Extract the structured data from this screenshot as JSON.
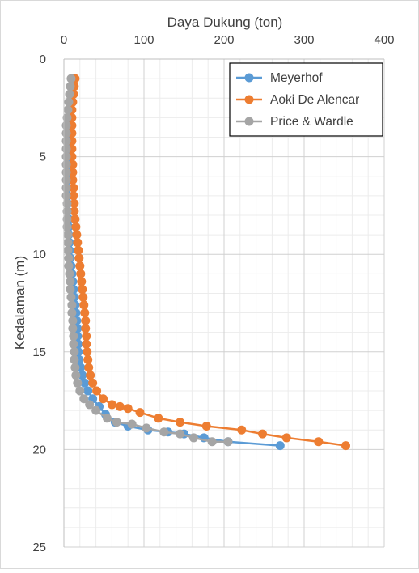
{
  "chart_data": {
    "type": "scatter",
    "title": "",
    "xlabel": "Daya Dukung (ton)",
    "ylabel": "Kedalaman (m)",
    "x_axis_position": "top",
    "y_axis_inverted": true,
    "xlim": [
      0,
      400
    ],
    "ylim": [
      0,
      25
    ],
    "x_ticks": [
      0,
      100,
      200,
      300,
      400
    ],
    "y_ticks": [
      0,
      5,
      10,
      15,
      20,
      25
    ],
    "x_minor_step": 20,
    "y_minor_step": 1,
    "grid": true,
    "legend": {
      "position": "top-right",
      "entries": [
        "Meyerhof",
        "Aoki De Alencar",
        "Price & Wardle"
      ]
    },
    "series": [
      {
        "name": "Meyerhof",
        "color": "#5B9BD5",
        "points": [
          [
            10,
            1.0
          ],
          [
            9,
            1.4
          ],
          [
            8,
            1.8
          ],
          [
            7,
            2.2
          ],
          [
            6,
            2.6
          ],
          [
            5,
            3.0
          ],
          [
            5,
            3.4
          ],
          [
            4,
            3.8
          ],
          [
            4,
            4.2
          ],
          [
            4,
            4.6
          ],
          [
            4,
            5.0
          ],
          [
            4,
            5.4
          ],
          [
            4,
            5.8
          ],
          [
            4,
            6.2
          ],
          [
            4,
            6.6
          ],
          [
            5,
            7.0
          ],
          [
            5,
            7.4
          ],
          [
            5,
            7.8
          ],
          [
            6,
            8.2
          ],
          [
            6,
            8.6
          ],
          [
            6,
            9.0
          ],
          [
            7,
            9.4
          ],
          [
            7,
            9.8
          ],
          [
            8,
            10.2
          ],
          [
            9,
            10.6
          ],
          [
            10,
            11.0
          ],
          [
            11,
            11.4
          ],
          [
            12,
            11.8
          ],
          [
            13,
            12.2
          ],
          [
            14,
            12.6
          ],
          [
            15,
            13.0
          ],
          [
            16,
            13.4
          ],
          [
            17,
            13.8
          ],
          [
            17,
            14.2
          ],
          [
            18,
            14.6
          ],
          [
            18,
            15.0
          ],
          [
            19,
            15.4
          ],
          [
            21,
            15.8
          ],
          [
            23,
            16.2
          ],
          [
            26,
            16.6
          ],
          [
            30,
            17.0
          ],
          [
            36,
            17.4
          ],
          [
            44,
            17.8
          ],
          [
            52,
            18.2
          ],
          [
            64,
            18.6
          ],
          [
            80,
            18.8
          ],
          [
            105,
            19.0
          ],
          [
            130,
            19.1
          ],
          [
            150,
            19.2
          ],
          [
            175,
            19.4
          ],
          [
            205,
            19.6
          ],
          [
            270,
            19.8
          ]
        ]
      },
      {
        "name": "Aoki De Alencar",
        "color": "#ED7D31",
        "points": [
          [
            14,
            1.0
          ],
          [
            13,
            1.4
          ],
          [
            12,
            1.8
          ],
          [
            11,
            2.2
          ],
          [
            10,
            2.6
          ],
          [
            10,
            3.0
          ],
          [
            10,
            3.4
          ],
          [
            10,
            3.8
          ],
          [
            10,
            4.2
          ],
          [
            10,
            4.6
          ],
          [
            10,
            5.0
          ],
          [
            11,
            5.4
          ],
          [
            11,
            5.8
          ],
          [
            11,
            6.2
          ],
          [
            12,
            6.6
          ],
          [
            12,
            7.0
          ],
          [
            13,
            7.4
          ],
          [
            13,
            7.8
          ],
          [
            14,
            8.2
          ],
          [
            15,
            8.6
          ],
          [
            16,
            9.0
          ],
          [
            17,
            9.4
          ],
          [
            18,
            9.8
          ],
          [
            19,
            10.2
          ],
          [
            20,
            10.6
          ],
          [
            21,
            11.0
          ],
          [
            22,
            11.4
          ],
          [
            23,
            11.8
          ],
          [
            24,
            12.2
          ],
          [
            25,
            12.6
          ],
          [
            26,
            13.0
          ],
          [
            27,
            13.4
          ],
          [
            27,
            13.8
          ],
          [
            28,
            14.2
          ],
          [
            28,
            14.6
          ],
          [
            29,
            15.0
          ],
          [
            30,
            15.4
          ],
          [
            31,
            15.8
          ],
          [
            33,
            16.2
          ],
          [
            36,
            16.6
          ],
          [
            41,
            17.0
          ],
          [
            49,
            17.4
          ],
          [
            60,
            17.7
          ],
          [
            70,
            17.8
          ],
          [
            80,
            17.9
          ],
          [
            95,
            18.1
          ],
          [
            118,
            18.4
          ],
          [
            145,
            18.6
          ],
          [
            178,
            18.8
          ],
          [
            222,
            19.0
          ],
          [
            248,
            19.2
          ],
          [
            278,
            19.4
          ],
          [
            318,
            19.6
          ],
          [
            352,
            19.8
          ]
        ]
      },
      {
        "name": "Price & Wardle",
        "color": "#A5A5A5",
        "points": [
          [
            9,
            1.0
          ],
          [
            8,
            1.4
          ],
          [
            7,
            1.8
          ],
          [
            6,
            2.2
          ],
          [
            5,
            2.6
          ],
          [
            4,
            3.0
          ],
          [
            3,
            3.4
          ],
          [
            3,
            3.8
          ],
          [
            3,
            4.2
          ],
          [
            3,
            4.6
          ],
          [
            3,
            5.0
          ],
          [
            3,
            5.4
          ],
          [
            3,
            5.8
          ],
          [
            3,
            6.2
          ],
          [
            3,
            6.6
          ],
          [
            3,
            7.0
          ],
          [
            4,
            7.4
          ],
          [
            4,
            7.8
          ],
          [
            4,
            8.2
          ],
          [
            4,
            8.6
          ],
          [
            5,
            9.0
          ],
          [
            5,
            9.4
          ],
          [
            5,
            9.8
          ],
          [
            6,
            10.2
          ],
          [
            6,
            10.6
          ],
          [
            7,
            11.0
          ],
          [
            8,
            11.4
          ],
          [
            8,
            11.8
          ],
          [
            9,
            12.2
          ],
          [
            10,
            12.6
          ],
          [
            10,
            13.0
          ],
          [
            11,
            13.4
          ],
          [
            11,
            13.8
          ],
          [
            12,
            14.2
          ],
          [
            12,
            14.6
          ],
          [
            13,
            15.0
          ],
          [
            13,
            15.4
          ],
          [
            14,
            15.8
          ],
          [
            15,
            16.2
          ],
          [
            17,
            16.6
          ],
          [
            20,
            17.0
          ],
          [
            25,
            17.4
          ],
          [
            32,
            17.7
          ],
          [
            40,
            18.0
          ],
          [
            54,
            18.4
          ],
          [
            66,
            18.6
          ],
          [
            85,
            18.7
          ],
          [
            103,
            18.9
          ],
          [
            125,
            19.1
          ],
          [
            145,
            19.2
          ],
          [
            162,
            19.4
          ],
          [
            185,
            19.6
          ],
          [
            205,
            19.6
          ]
        ]
      }
    ]
  }
}
